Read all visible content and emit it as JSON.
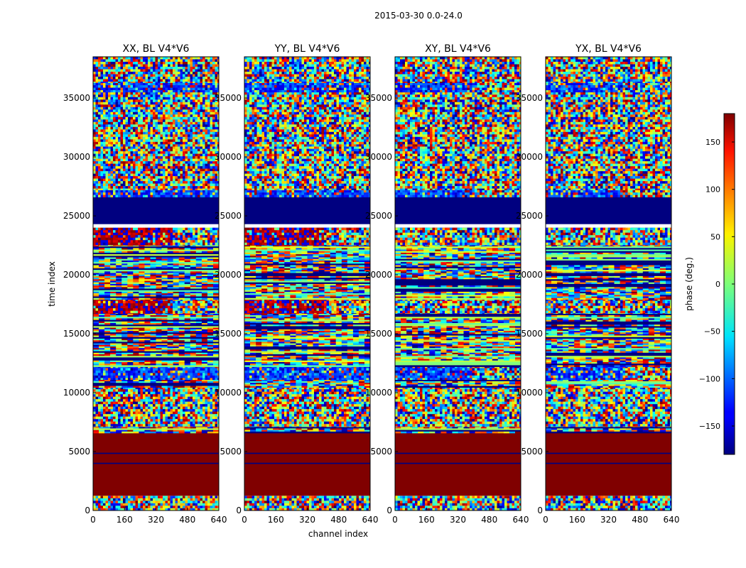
{
  "figure": {
    "suptitle": "2015-03-30 0.0-24.0"
  },
  "chart_data": {
    "type": "heatmap",
    "title": "2015-03-30 0.0-24.0",
    "xlabel": "channel index",
    "ylabel": "time index",
    "xlim": [
      0,
      640
    ],
    "ylim": [
      0,
      38500
    ],
    "xticks": [
      0,
      160,
      320,
      480,
      640
    ],
    "yticks": [
      0,
      5000,
      10000,
      15000,
      20000,
      25000,
      30000,
      35000
    ],
    "panels": [
      {
        "name": "XX",
        "title": "XX, BL V4*V6"
      },
      {
        "name": "YY",
        "title": "YY, BL V4*V6"
      },
      {
        "name": "XY",
        "title": "XY, BL V4*V6"
      },
      {
        "name": "YX",
        "title": "YX, BL V4*V6"
      }
    ],
    "colorbar": {
      "label": "phase (deg.)",
      "range": [
        -180,
        180
      ],
      "ticks": [
        -150,
        -100,
        -50,
        0,
        50,
        100,
        150
      ],
      "colormap": "jet"
    },
    "bands": [
      {
        "t0": 0,
        "t1": 1250,
        "kind": "noise"
      },
      {
        "t0": 1250,
        "t1": 6700,
        "kind": "solid",
        "phase": 180
      },
      {
        "t0": 4800,
        "t1": 4900,
        "kind": "solid",
        "phase": -180
      },
      {
        "t0": 3950,
        "t1": 4050,
        "kind": "solid",
        "phase": -180
      },
      {
        "t0": 6700,
        "t1": 7100,
        "kind": "stripe"
      },
      {
        "t0": 7100,
        "t1": 10500,
        "kind": "noise"
      },
      {
        "t0": 10500,
        "t1": 11100,
        "kind": "stripe"
      },
      {
        "t0": 11100,
        "t1": 12300,
        "kind": "blue_noise"
      },
      {
        "t0": 12300,
        "t1": 16700,
        "kind": "stripe"
      },
      {
        "t0": 16700,
        "t1": 18000,
        "kind": "red_noise"
      },
      {
        "t0": 18000,
        "t1": 24000,
        "kind": "stripe"
      },
      {
        "t0": 22500,
        "t1": 24000,
        "kind": "red_noise"
      },
      {
        "t0": 24300,
        "t1": 26600,
        "kind": "solid",
        "phase": -180
      },
      {
        "t0": 26600,
        "t1": 27200,
        "kind": "blue_noise"
      },
      {
        "t0": 27200,
        "t1": 30900,
        "kind": "noise"
      },
      {
        "t0": 30900,
        "t1": 35500,
        "kind": "noise"
      },
      {
        "t0": 35500,
        "t1": 36300,
        "kind": "blue_noise"
      },
      {
        "t0": 36300,
        "t1": 38500,
        "kind": "noise"
      }
    ]
  },
  "colors": {
    "solid_high": "#7f0000",
    "solid_low": "#00007f",
    "divider": "#00007f"
  }
}
